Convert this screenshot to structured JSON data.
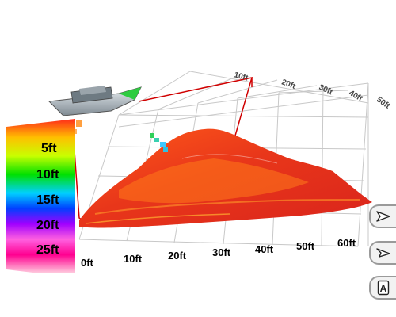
{
  "x_axis": {
    "ticks": [
      "0ft",
      "10ft",
      "20ft",
      "30ft",
      "40ft",
      "50ft",
      "60ft"
    ]
  },
  "depth_scale": {
    "labels": [
      "5ft",
      "10ft",
      "15ft",
      "20ft",
      "25ft"
    ]
  },
  "far_axis_labels": [
    "10ft",
    "20ft",
    "30ft",
    "40ft",
    "50ft"
  ],
  "controls": {
    "top": {
      "icon": "pan-arrow-icon"
    },
    "middle": {
      "icon": "tilt-arrow-icon"
    },
    "bottom": {
      "icon": "north-up-icon",
      "label": "A"
    }
  },
  "colors": {
    "survey_track": "#d00000",
    "surface_primary": "#e63a14",
    "surface_highlight": "#ff7a1a",
    "grid": "#c8c8c8"
  }
}
